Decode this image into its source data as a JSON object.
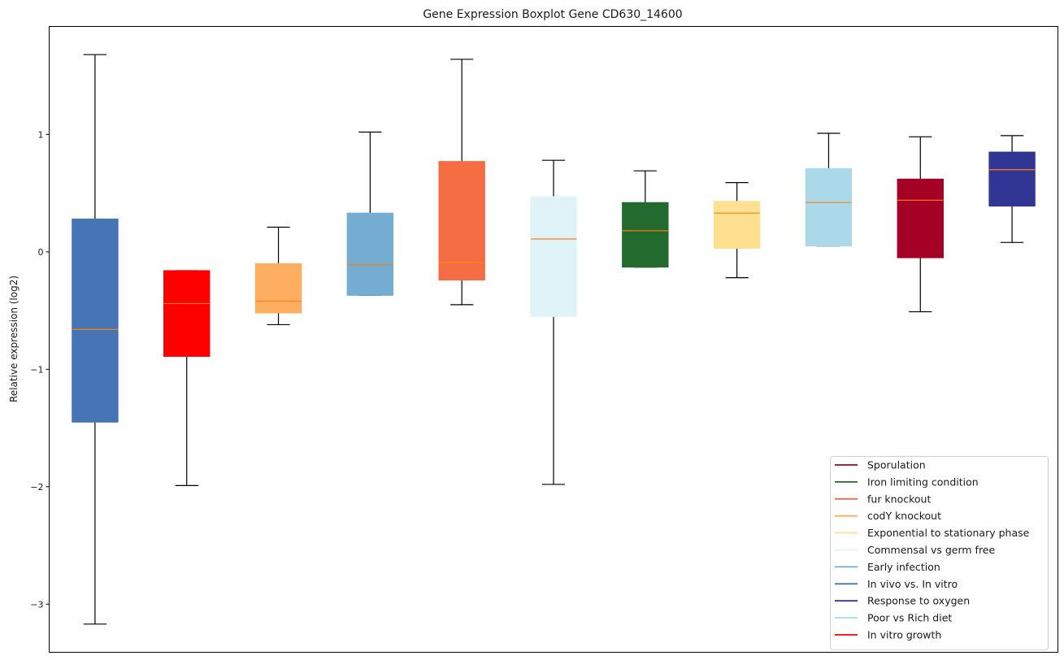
{
  "chart_data": {
    "type": "boxplot",
    "title": "Gene Expression Boxplot Gene CD630_14600",
    "xlabel": "",
    "ylabel": "Relative expression (log2)",
    "ylim": [
      -3.41,
      1.92
    ],
    "yticks": [
      1,
      0,
      -1,
      -2,
      -3
    ],
    "ytick_labels": [
      "1",
      "0",
      "−1",
      "−2",
      "−3"
    ],
    "grid": false,
    "legend_position": "lower-right",
    "median_color": "#ff7f0e",
    "boxes": [
      {
        "name": "In vivo vs. In vitro",
        "color": "#4575b4",
        "whisker_low": -3.17,
        "q1": -1.45,
        "median": -0.66,
        "q3": 0.28,
        "whisker_high": 1.68
      },
      {
        "name": "In vitro growth",
        "color": "#ff0000",
        "whisker_low": -1.99,
        "q1": -0.89,
        "median": -0.44,
        "q3": -0.16,
        "whisker_high": -0.16
      },
      {
        "name": "codY knockout",
        "color": "#fdae61",
        "whisker_low": -0.62,
        "q1": -0.52,
        "median": -0.42,
        "q3": -0.1,
        "whisker_high": 0.21
      },
      {
        "name": "Early infection",
        "color": "#74add1",
        "whisker_low": -0.37,
        "q1": -0.37,
        "median": -0.11,
        "q3": 0.33,
        "whisker_high": 1.02
      },
      {
        "name": "fur knockout",
        "color": "#f46d43",
        "whisker_low": -0.45,
        "q1": -0.24,
        "median": -0.09,
        "q3": 0.77,
        "whisker_high": 1.64
      },
      {
        "name": "Commensal vs germ free",
        "color": "#e0f3f8",
        "whisker_low": -1.98,
        "q1": -0.55,
        "median": 0.11,
        "q3": 0.47,
        "whisker_high": 0.78
      },
      {
        "name": "Iron limiting condition",
        "color": "#226a2e",
        "whisker_low": -0.13,
        "q1": -0.13,
        "median": 0.18,
        "q3": 0.42,
        "whisker_high": 0.69
      },
      {
        "name": "Exponential to stationary phase",
        "color": "#fee090",
        "whisker_low": -0.22,
        "q1": 0.03,
        "median": 0.33,
        "q3": 0.43,
        "whisker_high": 0.59
      },
      {
        "name": "Poor vs Rich diet",
        "color": "#abd9e9",
        "whisker_low": 0.05,
        "q1": 0.05,
        "median": 0.42,
        "q3": 0.71,
        "whisker_high": 1.01
      },
      {
        "name": "Sporulation",
        "color": "#a50026",
        "whisker_low": -0.51,
        "q1": -0.05,
        "median": 0.44,
        "q3": 0.62,
        "whisker_high": 0.98
      },
      {
        "name": "Response to oxygen",
        "color": "#313695",
        "whisker_low": 0.08,
        "q1": 0.39,
        "median": 0.7,
        "q3": 0.85,
        "whisker_high": 0.99
      }
    ],
    "legend": [
      {
        "label": "Sporulation",
        "color": "#a50026"
      },
      {
        "label": "Iron limiting condition",
        "color": "#226a2e"
      },
      {
        "label": "fur knockout",
        "color": "#f46d43"
      },
      {
        "label": "codY knockout",
        "color": "#fdae61"
      },
      {
        "label": "Exponential to stationary phase",
        "color": "#fee090"
      },
      {
        "label": "Commensal vs germ free",
        "color": "#e0f3f8"
      },
      {
        "label": "Early infection",
        "color": "#74add1"
      },
      {
        "label": "In vivo vs. In vitro",
        "color": "#4575b4"
      },
      {
        "label": "Response to oxygen",
        "color": "#313695"
      },
      {
        "label": "Poor vs Rich diet",
        "color": "#abd9e9"
      },
      {
        "label": "In vitro growth",
        "color": "#ff0000"
      }
    ]
  }
}
